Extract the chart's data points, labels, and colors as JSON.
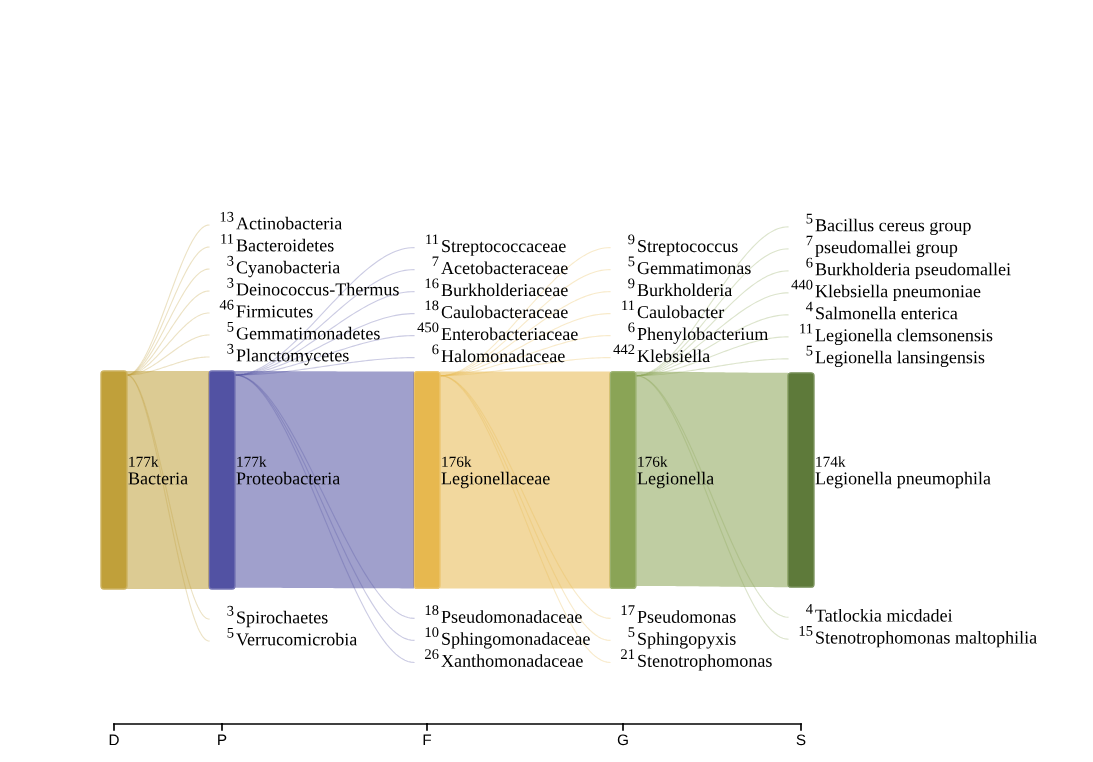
{
  "chart_data": [
    {
      "type": "other",
      "title": "D",
      "color": "#c0a03a",
      "categories": [
        "Bacteria"
      ],
      "values": [
        177000
      ],
      "value_labels": [
        "177k"
      ]
    },
    {
      "type": "other",
      "title": "P",
      "color": "#5252a3",
      "categories": [
        "Actinobacteria",
        "Bacteroidetes",
        "Cyanobacteria",
        "Deinococcus-Thermus",
        "Firmicutes",
        "Gemmatimonadetes",
        "Planctomycetes",
        "Proteobacteria",
        "Spirochaetes",
        "Verrucomicrobia"
      ],
      "values": [
        13,
        11,
        3,
        3,
        46,
        5,
        3,
        177000,
        3,
        5
      ],
      "value_labels": [
        "13",
        "11",
        "3",
        "3",
        "46",
        "5",
        "3",
        "177k",
        "3",
        "5"
      ]
    },
    {
      "type": "other",
      "title": "F",
      "color": "#e7b84f",
      "categories": [
        "Streptococcaceae",
        "Acetobacteraceae",
        "Burkholderiaceae",
        "Caulobacteraceae",
        "Enterobacteriaceae",
        "Halomonadaceae",
        "Legionellaceae",
        "Pseudomonadaceae",
        "Sphingomonadaceae",
        "Xanthomonadaceae"
      ],
      "values": [
        11,
        7,
        16,
        18,
        450,
        6,
        176000,
        18,
        10,
        26
      ],
      "value_labels": [
        "11",
        "7",
        "16",
        "18",
        "450",
        "6",
        "176k",
        "18",
        "10",
        "26"
      ]
    },
    {
      "type": "other",
      "title": "G",
      "color": "#8aa456",
      "categories": [
        "Streptococcus",
        "Gemmatimonas",
        "Burkholderia",
        "Caulobacter",
        "Phenylobacterium",
        "Klebsiella",
        "Legionella",
        "Pseudomonas",
        "Sphingopyxis",
        "Stenotrophomonas"
      ],
      "values": [
        9,
        5,
        9,
        11,
        6,
        442,
        176000,
        17,
        5,
        21
      ],
      "value_labels": [
        "9",
        "5",
        "9",
        "11",
        "6",
        "442",
        "176k",
        "17",
        "5",
        "21"
      ]
    },
    {
      "type": "other",
      "title": "S",
      "color": "#5e7a3a",
      "categories": [
        "Bacillus cereus group",
        "pseudomallei group",
        "Burkholderia pseudomallei",
        "Klebsiella pneumoniae",
        "Salmonella enterica",
        "Legionella clemsonensis",
        "Legionella lansingensis",
        "Legionella pneumophila",
        "Tatlockia micdadei",
        "Stenotrophomonas maltophilia"
      ],
      "values": [
        5,
        7,
        6,
        440,
        4,
        11,
        5,
        174000,
        4,
        15
      ],
      "value_labels": [
        "5",
        "7",
        "6",
        "440",
        "4",
        "11",
        "5",
        "174k",
        "4",
        "15"
      ]
    }
  ]
}
